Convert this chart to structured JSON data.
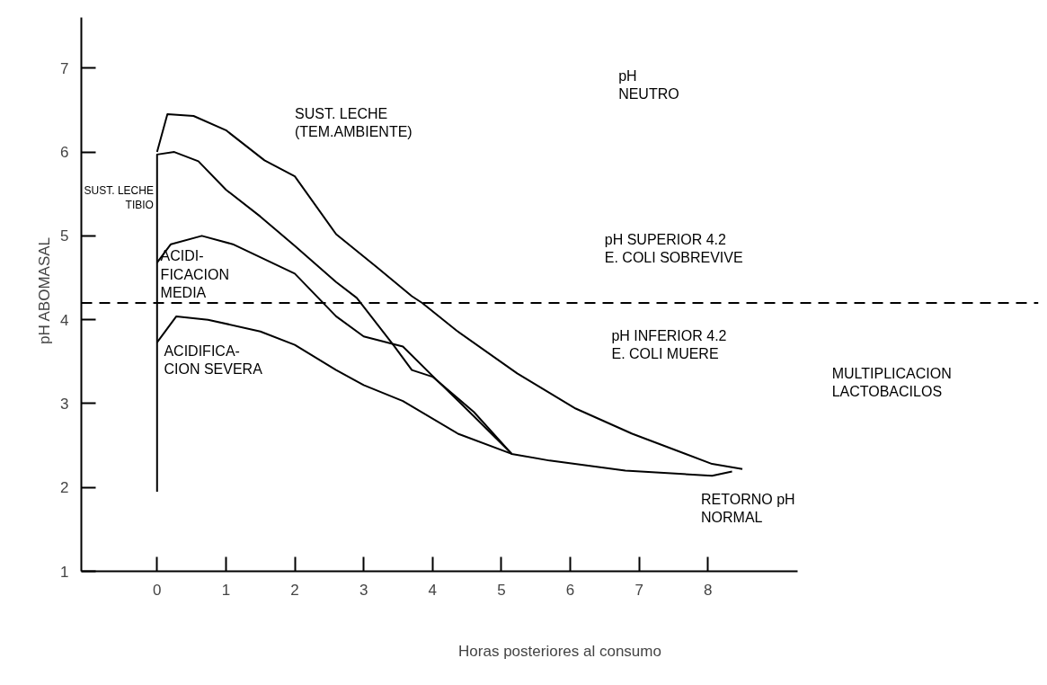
{
  "chart_data": {
    "type": "line",
    "xlabel": "Horas posteriores al consumo",
    "ylabel": "pH ABOMASAL",
    "xlim": [
      -1.1,
      9.3
    ],
    "ylim": [
      1,
      7.6
    ],
    "xticks": [
      0,
      1,
      2,
      3,
      4,
      5,
      6,
      7,
      8
    ],
    "yticks": [
      1,
      2,
      3,
      4,
      5,
      6,
      7
    ],
    "grid": false,
    "marker": "none",
    "line_style": "solid",
    "series": [
      {
        "name": "SUST. LECHE\n(TEM.AMBIENTE)",
        "color": "#000000",
        "x": [
          0,
          0.15,
          0.53,
          1,
          1.56,
          2,
          2.6,
          3.2,
          3.7,
          3.85,
          4.35,
          5.23,
          6.08,
          6.9,
          8.06,
          8.5
        ],
        "values": [
          6.0,
          6.45,
          6.43,
          6.26,
          5.9,
          5.71,
          5.02,
          4.62,
          4.28,
          4.2,
          3.87,
          3.36,
          2.94,
          2.64,
          2.28,
          2.22
        ]
      },
      {
        "name": "SUST. LECHE\nTIBIO",
        "color": "#000000",
        "x": [
          0,
          0,
          0.25,
          0.6,
          1,
          1.5,
          2,
          2.6,
          2.9,
          3.44,
          3.7,
          4.0,
          4.6,
          5.15
        ],
        "values": [
          1.95,
          5.97,
          6.0,
          5.89,
          5.55,
          5.23,
          4.88,
          4.45,
          4.26,
          3.69,
          3.4,
          3.32,
          2.9,
          2.4
        ]
      },
      {
        "name": "ACIDI-\nFICACION\nMEDIA",
        "color": "#000000",
        "x": [
          0,
          0.2,
          0.65,
          1.1,
          2,
          2.6,
          3,
          3.57,
          4.0,
          4.6,
          5.15
        ],
        "values": [
          4.68,
          4.9,
          5.0,
          4.9,
          4.55,
          4.04,
          3.8,
          3.68,
          3.33,
          2.85,
          2.4
        ]
      },
      {
        "name": "ACIDIFICA-\nCION SEVERA",
        "color": "#000000",
        "x": [
          0,
          0.28,
          0.74,
          1.5,
          2,
          2.6,
          3,
          3.57,
          4.37,
          5.15,
          5.7,
          6.8,
          8.06,
          8.35
        ],
        "values": [
          3.73,
          4.04,
          4.0,
          3.86,
          3.7,
          3.4,
          3.22,
          3.03,
          2.64,
          2.4,
          2.32,
          2.2,
          2.14,
          2.19
        ]
      }
    ],
    "ref_lines": [
      {
        "axis": "y",
        "value": 4.2,
        "color": "#000000",
        "line_style": "dashed"
      }
    ],
    "annotations": [
      "pH\nNEUTRO",
      "pH SUPERIOR 4.2\nE. COLI SOBREVIVE",
      "pH INFERIOR 4.2\nE. COLI MUERE",
      "MULTIPLICACION\nLACTOBACILOS",
      "RETORNO pH\nNORMAL"
    ]
  }
}
